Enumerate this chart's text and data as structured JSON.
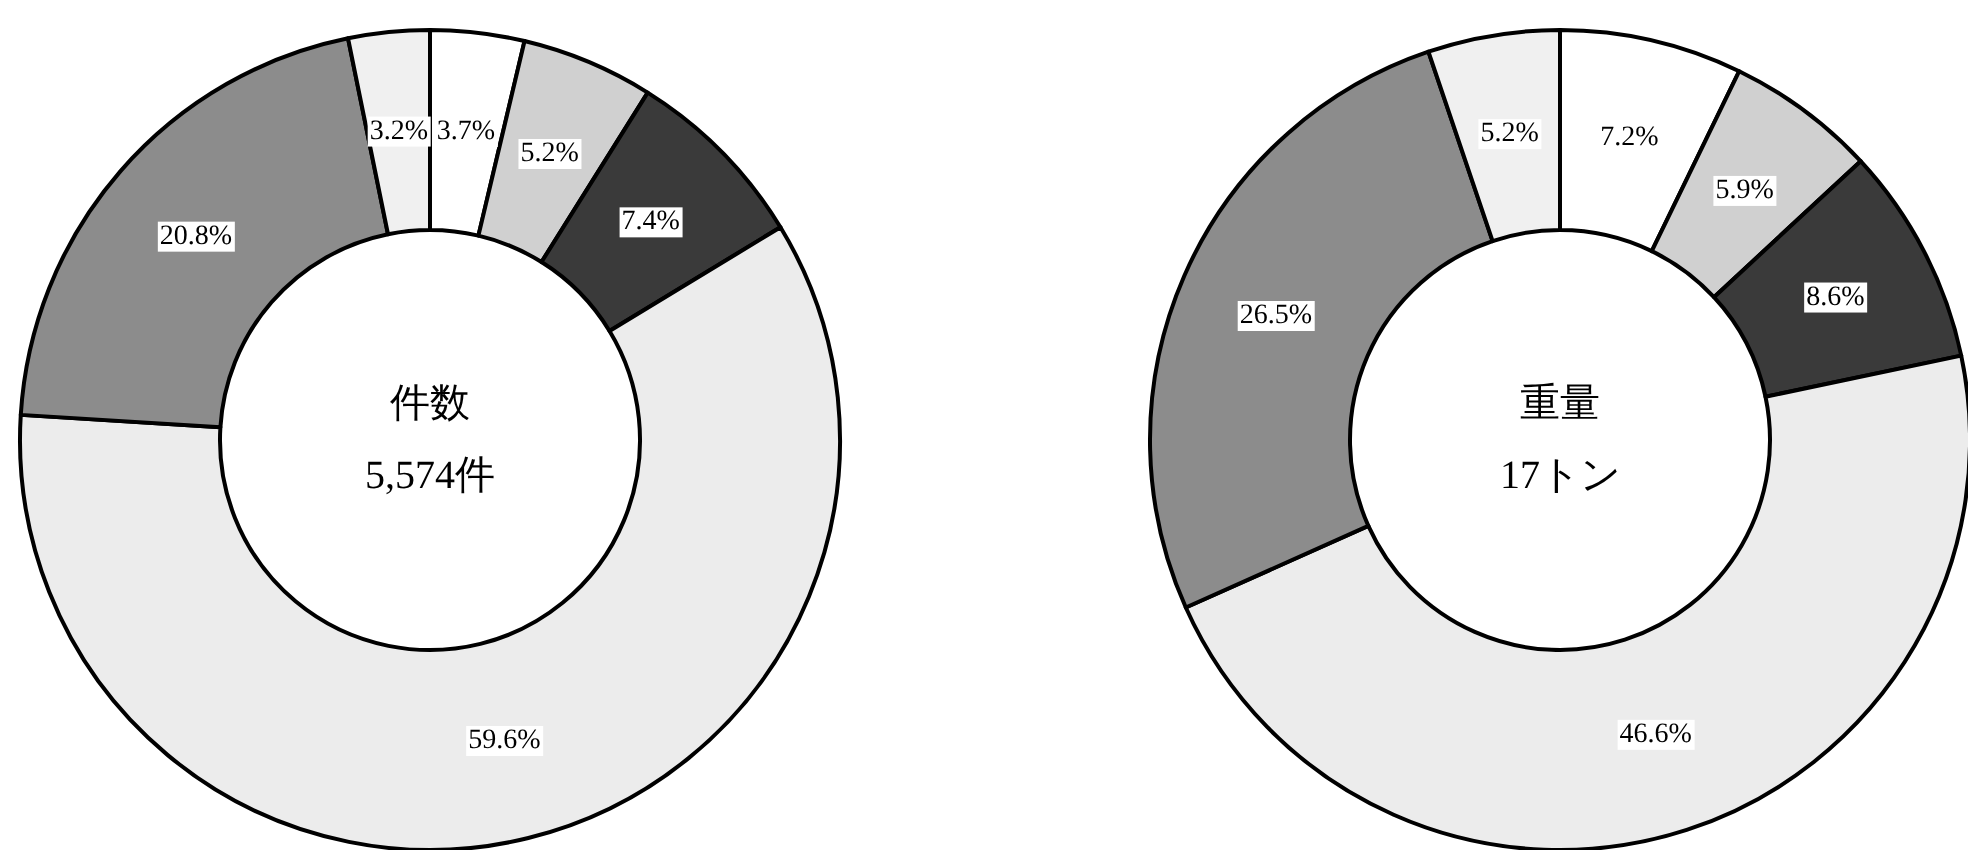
{
  "chart_data": [
    {
      "type": "donut",
      "title": "件数",
      "subtitle": "5,574件",
      "categories": [
        null,
        null,
        null,
        null,
        null,
        null
      ],
      "values": [
        3.7,
        5.2,
        7.4,
        59.6,
        20.8,
        3.2
      ],
      "value_labels": [
        "3.7%",
        "5.2%",
        "7.4%",
        "59.6%",
        "20.8%",
        "3.2%"
      ],
      "colors": [
        "#ffffff",
        "#d0d0d0",
        "#3a3a3a",
        "#ececec",
        "#8c8c8c",
        "#f0f0f0"
      ]
    },
    {
      "type": "donut",
      "title": "重量",
      "subtitle": "17トン",
      "categories": [
        null,
        null,
        null,
        null,
        null,
        null
      ],
      "values": [
        7.2,
        5.9,
        8.6,
        46.6,
        26.5,
        5.2
      ],
      "value_labels": [
        "7.2%",
        "5.9%",
        "8.6%",
        "46.6%",
        "26.5%",
        "5.2%"
      ],
      "colors": [
        "#ffffff",
        "#d0d0d0",
        "#3a3a3a",
        "#ececec",
        "#8c8c8c",
        "#f0f0f0"
      ]
    }
  ]
}
